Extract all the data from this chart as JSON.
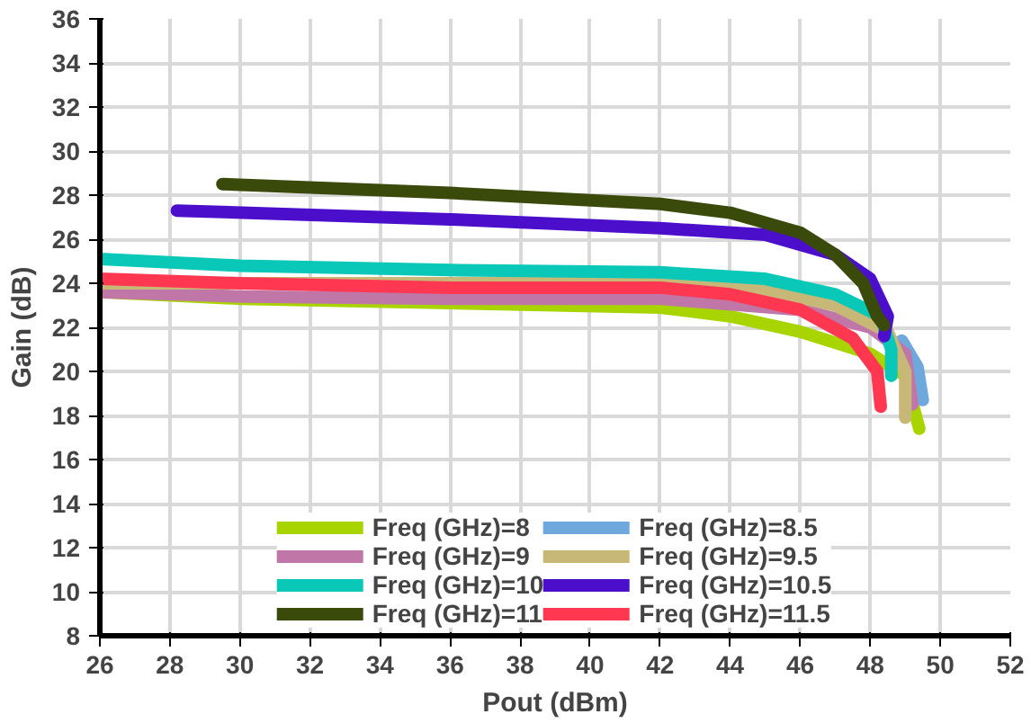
{
  "chart_data": {
    "type": "line",
    "xlabel": "Pout (dBm)",
    "ylabel": "Gain (dB)",
    "xlim": [
      26,
      52
    ],
    "xticks": [
      26,
      28,
      30,
      32,
      34,
      36,
      38,
      40,
      42,
      44,
      46,
      48,
      50,
      52
    ],
    "ylim": [
      8,
      36
    ],
    "yticks": [
      8,
      10,
      12,
      14,
      16,
      18,
      20,
      22,
      24,
      26,
      28,
      30,
      32,
      34,
      36
    ],
    "grid": true,
    "legend": "bottom",
    "marker": "none",
    "line_style": "solid",
    "series": [
      {
        "name": "Freq (GHz)=8",
        "color": "#a8d400",
        "x": [
          26,
          30,
          36,
          42,
          44,
          46,
          48,
          49,
          49.4
        ],
        "values": [
          23.6,
          23.3,
          23.1,
          22.9,
          22.5,
          21.8,
          20.8,
          19.8,
          17.4
        ]
      },
      {
        "name": "Freq (GHz)=8.5",
        "color": "#6fa8dc",
        "x": [
          48.9,
          49.35,
          49.5
        ],
        "values": [
          21.4,
          20.2,
          18.7
        ]
      },
      {
        "name": "Freq (GHz)=9",
        "color": "#c077a8",
        "x": [
          26,
          30,
          36,
          42,
          46,
          48,
          49,
          49.2
        ],
        "values": [
          23.6,
          23.4,
          23.3,
          23.3,
          22.8,
          22.0,
          20.8,
          18.5
        ]
      },
      {
        "name": "Freq (GHz)=9.5",
        "color": "#c8b878",
        "x": [
          26,
          36,
          42,
          45,
          47,
          48.5,
          49,
          49.0
        ],
        "values": [
          24.0,
          24.0,
          24.0,
          23.7,
          23.0,
          21.8,
          20.0,
          17.9
        ]
      },
      {
        "name": "Freq (GHz)=10",
        "color": "#0ac8b8",
        "x": [
          26,
          30,
          36,
          42,
          45,
          47,
          48.3,
          48.6,
          48.6
        ],
        "values": [
          25.1,
          24.8,
          24.6,
          24.5,
          24.2,
          23.5,
          22.5,
          21.0,
          19.8
        ]
      },
      {
        "name": "Freq (GHz)=10.5",
        "color": "#4b0fcc",
        "x": [
          28.2,
          36,
          42,
          45,
          47,
          48,
          48.5,
          48.4
        ],
        "values": [
          27.3,
          26.9,
          26.5,
          26.2,
          25.3,
          24.2,
          22.5,
          21.6
        ]
      },
      {
        "name": "Freq (GHz)=11",
        "color": "#3a4a0a",
        "x": [
          29.5,
          36,
          42,
          44,
          46,
          47,
          47.8,
          48.2,
          48.4
        ],
        "values": [
          28.5,
          28.1,
          27.6,
          27.2,
          26.3,
          25.3,
          24.0,
          22.5,
          22.1
        ]
      },
      {
        "name": "Freq (GHz)=11.5",
        "color": "#ff3750",
        "x": [
          26,
          30,
          36,
          42,
          44,
          46,
          47.5,
          48.2,
          48.3
        ],
        "values": [
          24.2,
          24.0,
          23.8,
          23.8,
          23.5,
          22.8,
          21.5,
          20.0,
          18.4
        ]
      }
    ]
  }
}
